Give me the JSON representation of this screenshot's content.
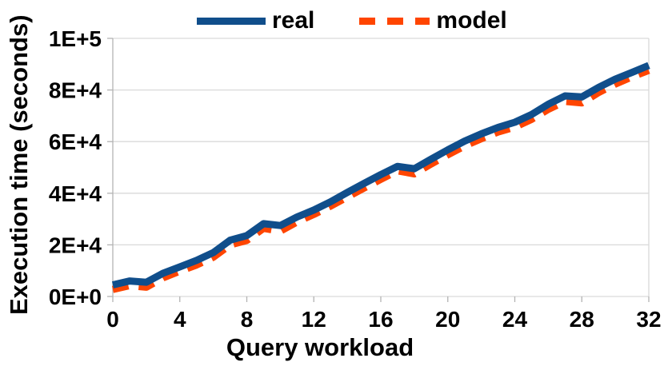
{
  "chart_data": {
    "type": "line",
    "title": "",
    "xlabel": "Query workload",
    "ylabel": "Execution time (seconds)",
    "xlim": [
      0,
      32
    ],
    "ylim": [
      0,
      100000
    ],
    "grid": "horizontal",
    "legend_position": "top-center",
    "x_ticks": {
      "values": [
        0,
        4,
        8,
        12,
        16,
        20,
        24,
        28,
        32
      ],
      "labels": [
        "0",
        "4",
        "8",
        "12",
        "16",
        "20",
        "24",
        "28",
        "32"
      ]
    },
    "y_ticks": {
      "values": [
        0,
        20000,
        40000,
        60000,
        80000,
        100000
      ],
      "labels": [
        "0E+0",
        "2E+4",
        "4E+4",
        "6E+4",
        "8E+4",
        "1E+5"
      ]
    },
    "x": [
      0,
      1,
      2,
      3,
      4,
      5,
      6,
      7,
      8,
      9,
      10,
      11,
      12,
      13,
      14,
      15,
      16,
      17,
      18,
      19,
      20,
      21,
      22,
      23,
      24,
      25,
      26,
      27,
      28,
      29,
      30,
      31,
      32
    ],
    "series": [
      {
        "name": "real",
        "color": "#104e8b",
        "style": "solid",
        "values": [
          4500,
          6000,
          5500,
          9000,
          11500,
          14000,
          17000,
          21800,
          23600,
          28200,
          27500,
          30800,
          33500,
          36700,
          40300,
          43800,
          47200,
          50400,
          49500,
          53200,
          56800,
          60200,
          63000,
          65500,
          67500,
          70500,
          74500,
          77700,
          77300,
          81000,
          84200,
          86800,
          89500
        ]
      },
      {
        "name": "model",
        "color": "#ff4500",
        "style": "dashed",
        "values": [
          2700,
          4200,
          3600,
          7200,
          9800,
          12200,
          15200,
          20000,
          21700,
          26400,
          25300,
          28900,
          31800,
          35000,
          38500,
          42000,
          45400,
          48700,
          47500,
          51300,
          54900,
          58300,
          61100,
          63700,
          65600,
          68600,
          72500,
          75600,
          75000,
          79000,
          82300,
          85100,
          87600
        ]
      }
    ]
  },
  "colors": {
    "background": "#ffffff",
    "gridline": "#d9d9d9",
    "axis": "#b3b3b3",
    "text": "#000000"
  }
}
